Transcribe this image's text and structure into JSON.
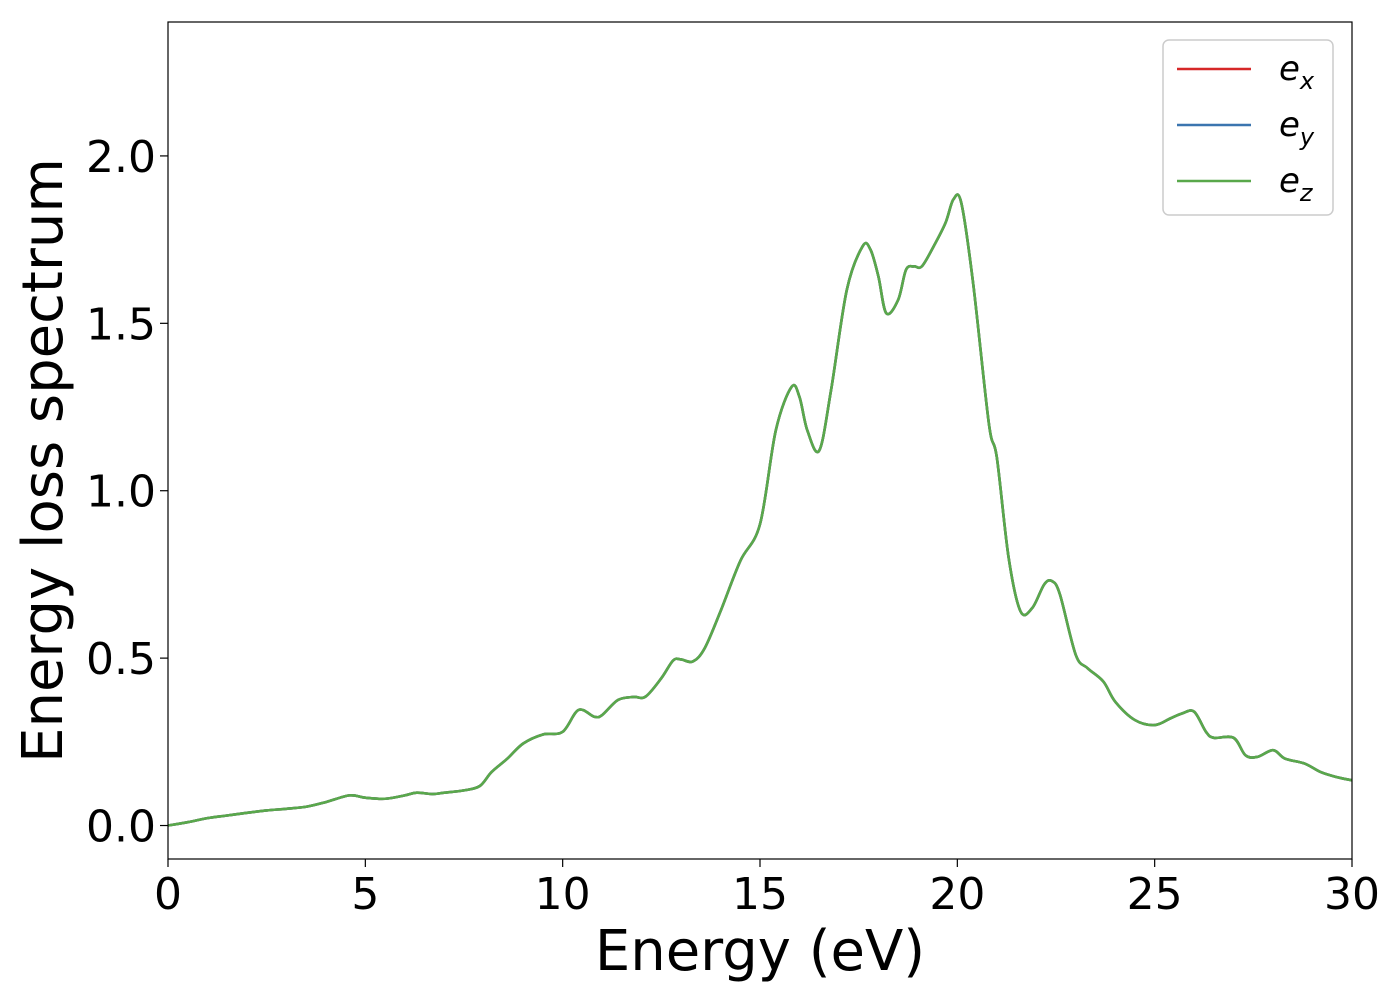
{
  "chart_data": {
    "type": "line",
    "title": "",
    "xlabel": "Energy (eV)",
    "ylabel": "Energy loss spectrum",
    "xlim": [
      0,
      30
    ],
    "ylim": [
      -0.1,
      2.4
    ],
    "x_ticks": [
      0,
      5,
      10,
      15,
      20,
      25,
      30
    ],
    "x_tick_labels": [
      "0",
      "5",
      "10",
      "15",
      "20",
      "25",
      "30"
    ],
    "y_ticks": [
      0.0,
      0.5,
      1.0,
      1.5,
      2.0
    ],
    "y_tick_labels": [
      "0.0",
      "0.5",
      "1.0",
      "1.5",
      "2.0"
    ],
    "grid": false,
    "legend_position": "top-right",
    "colors": {
      "e_x": "#d62728",
      "e_y": "#3b75af",
      "e_z": "#59a84b"
    },
    "series": [
      {
        "name": "e_x",
        "legend": {
          "base": "e",
          "sub": "x"
        },
        "color": "#d62728",
        "x": [
          0,
          0.5,
          1.0,
          1.5,
          2.0,
          2.5,
          3.0,
          3.5,
          4.0,
          4.6,
          5.0,
          5.5,
          6.0,
          6.3,
          6.7,
          7.0,
          7.5,
          7.9,
          8.2,
          8.6,
          9.0,
          9.5,
          10.0,
          10.4,
          10.8,
          11.0,
          11.4,
          11.8,
          12.1,
          12.5,
          12.8,
          13.0,
          13.3,
          13.6,
          14.0,
          14.5,
          15.0,
          15.4,
          15.8,
          16.0,
          16.2,
          16.5,
          16.8,
          17.2,
          17.6,
          17.8,
          18.0,
          18.2,
          18.5,
          18.7,
          18.9,
          19.1,
          19.4,
          19.7,
          19.9,
          20.1,
          20.4,
          20.8,
          21.0,
          21.3,
          21.6,
          21.9,
          22.2,
          22.4,
          22.6,
          23.0,
          23.3,
          23.7,
          24.0,
          24.5,
          25.0,
          25.4,
          25.7,
          26.0,
          26.3,
          26.5,
          27.0,
          27.3,
          27.6,
          28.0,
          28.3,
          28.8,
          29.2,
          29.6,
          30.0
        ],
        "y": [
          0.0,
          0.01,
          0.022,
          0.03,
          0.038,
          0.045,
          0.05,
          0.056,
          0.07,
          0.09,
          0.083,
          0.08,
          0.09,
          0.098,
          0.094,
          0.098,
          0.105,
          0.118,
          0.16,
          0.2,
          0.245,
          0.272,
          0.28,
          0.345,
          0.325,
          0.33,
          0.375,
          0.384,
          0.385,
          0.44,
          0.493,
          0.496,
          0.49,
          0.53,
          0.64,
          0.79,
          0.9,
          1.18,
          1.31,
          1.28,
          1.18,
          1.12,
          1.3,
          1.6,
          1.73,
          1.72,
          1.64,
          1.53,
          1.57,
          1.66,
          1.67,
          1.67,
          1.73,
          1.8,
          1.87,
          1.86,
          1.62,
          1.2,
          1.1,
          0.8,
          0.64,
          0.65,
          0.72,
          0.73,
          0.69,
          0.51,
          0.47,
          0.43,
          0.37,
          0.315,
          0.3,
          0.32,
          0.335,
          0.34,
          0.28,
          0.262,
          0.262,
          0.21,
          0.205,
          0.225,
          0.2,
          0.185,
          0.16,
          0.145,
          0.135
        ]
      },
      {
        "name": "e_y",
        "legend": {
          "base": "e",
          "sub": "y"
        },
        "color": "#3b75af",
        "x": [
          0,
          0.5,
          1.0,
          1.5,
          2.0,
          2.5,
          3.0,
          3.5,
          4.0,
          4.6,
          5.0,
          5.5,
          6.0,
          6.3,
          6.7,
          7.0,
          7.5,
          7.9,
          8.2,
          8.6,
          9.0,
          9.5,
          10.0,
          10.4,
          10.8,
          11.0,
          11.4,
          11.8,
          12.1,
          12.5,
          12.8,
          13.0,
          13.3,
          13.6,
          14.0,
          14.5,
          15.0,
          15.4,
          15.8,
          16.0,
          16.2,
          16.5,
          16.8,
          17.2,
          17.6,
          17.8,
          18.0,
          18.2,
          18.5,
          18.7,
          18.9,
          19.1,
          19.4,
          19.7,
          19.9,
          20.1,
          20.4,
          20.8,
          21.0,
          21.3,
          21.6,
          21.9,
          22.2,
          22.4,
          22.6,
          23.0,
          23.3,
          23.7,
          24.0,
          24.5,
          25.0,
          25.4,
          25.7,
          26.0,
          26.3,
          26.5,
          27.0,
          27.3,
          27.6,
          28.0,
          28.3,
          28.8,
          29.2,
          29.6,
          30.0
        ],
        "y": [
          0.0,
          0.01,
          0.022,
          0.03,
          0.038,
          0.045,
          0.05,
          0.056,
          0.07,
          0.09,
          0.083,
          0.08,
          0.09,
          0.098,
          0.094,
          0.098,
          0.105,
          0.118,
          0.16,
          0.2,
          0.245,
          0.272,
          0.28,
          0.345,
          0.325,
          0.33,
          0.375,
          0.384,
          0.385,
          0.44,
          0.493,
          0.496,
          0.49,
          0.53,
          0.64,
          0.79,
          0.9,
          1.18,
          1.31,
          1.28,
          1.18,
          1.12,
          1.3,
          1.6,
          1.73,
          1.72,
          1.64,
          1.53,
          1.57,
          1.66,
          1.67,
          1.67,
          1.73,
          1.8,
          1.87,
          1.86,
          1.62,
          1.2,
          1.1,
          0.8,
          0.64,
          0.65,
          0.72,
          0.73,
          0.69,
          0.51,
          0.47,
          0.43,
          0.37,
          0.315,
          0.3,
          0.32,
          0.335,
          0.34,
          0.28,
          0.262,
          0.262,
          0.21,
          0.205,
          0.225,
          0.2,
          0.185,
          0.16,
          0.145,
          0.135
        ]
      },
      {
        "name": "e_z",
        "legend": {
          "base": "e",
          "sub": "z"
        },
        "color": "#59a84b",
        "x": [
          0,
          0.5,
          1.0,
          1.5,
          2.0,
          2.5,
          3.0,
          3.5,
          4.0,
          4.6,
          5.0,
          5.5,
          6.0,
          6.3,
          6.7,
          7.0,
          7.5,
          7.9,
          8.2,
          8.6,
          9.0,
          9.5,
          10.0,
          10.4,
          10.8,
          11.0,
          11.4,
          11.8,
          12.1,
          12.5,
          12.8,
          13.0,
          13.3,
          13.6,
          14.0,
          14.5,
          15.0,
          15.4,
          15.8,
          16.0,
          16.2,
          16.5,
          16.8,
          17.2,
          17.6,
          17.8,
          18.0,
          18.2,
          18.5,
          18.7,
          18.9,
          19.1,
          19.4,
          19.7,
          19.9,
          20.1,
          20.4,
          20.8,
          21.0,
          21.3,
          21.6,
          21.9,
          22.2,
          22.4,
          22.6,
          23.0,
          23.3,
          23.7,
          24.0,
          24.5,
          25.0,
          25.4,
          25.7,
          26.0,
          26.3,
          26.5,
          27.0,
          27.3,
          27.6,
          28.0,
          28.3,
          28.8,
          29.2,
          29.6,
          30.0
        ],
        "y": [
          0.0,
          0.01,
          0.022,
          0.03,
          0.038,
          0.045,
          0.05,
          0.056,
          0.07,
          0.09,
          0.083,
          0.08,
          0.09,
          0.098,
          0.094,
          0.098,
          0.105,
          0.118,
          0.16,
          0.2,
          0.245,
          0.272,
          0.28,
          0.345,
          0.325,
          0.33,
          0.375,
          0.384,
          0.385,
          0.44,
          0.493,
          0.496,
          0.49,
          0.53,
          0.64,
          0.79,
          0.9,
          1.18,
          1.31,
          1.28,
          1.18,
          1.12,
          1.3,
          1.6,
          1.73,
          1.72,
          1.64,
          1.53,
          1.57,
          1.66,
          1.67,
          1.67,
          1.73,
          1.8,
          1.87,
          1.86,
          1.62,
          1.2,
          1.1,
          0.8,
          0.64,
          0.65,
          0.72,
          0.73,
          0.69,
          0.51,
          0.47,
          0.43,
          0.37,
          0.315,
          0.3,
          0.32,
          0.335,
          0.34,
          0.28,
          0.262,
          0.262,
          0.21,
          0.205,
          0.225,
          0.2,
          0.185,
          0.16,
          0.145,
          0.135
        ]
      }
    ]
  }
}
